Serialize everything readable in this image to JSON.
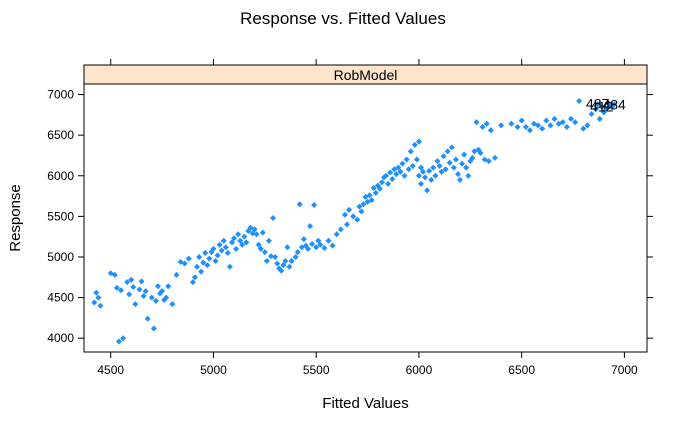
{
  "chart_data": {
    "type": "scatter",
    "title": "Response vs. Fitted Values",
    "xlabel": "Fitted Values",
    "ylabel": "Response",
    "panel_label": "RobModel",
    "xlim": [
      4370,
      7110
    ],
    "ylim": [
      3830,
      7130
    ],
    "x_ticks": [
      4500,
      5000,
      5500,
      6000,
      6500,
      7000
    ],
    "y_ticks": [
      4000,
      4500,
      5000,
      5500,
      6000,
      6500,
      7000
    ],
    "grid": false,
    "colors": {
      "points": "#1E90FF",
      "strip": "#FFE5CC",
      "frame": "#000000"
    },
    "annotations": [
      {
        "text": "484",
        "x": 6950,
        "y": 6880
      },
      {
        "text": "487",
        "x": 6870,
        "y": 6890
      },
      {
        "text": "412",
        "x": 6890,
        "y": 6855
      }
    ],
    "points": [
      [
        4420,
        4440
      ],
      [
        4430,
        4560
      ],
      [
        4440,
        4500
      ],
      [
        4450,
        4400
      ],
      [
        4500,
        4800
      ],
      [
        4520,
        4780
      ],
      [
        4530,
        4620
      ],
      [
        4550,
        4590
      ],
      [
        4540,
        3960
      ],
      [
        4560,
        4000
      ],
      [
        4580,
        4690
      ],
      [
        4600,
        4720
      ],
      [
        4590,
        4540
      ],
      [
        4610,
        4630
      ],
      [
        4620,
        4420
      ],
      [
        4640,
        4600
      ],
      [
        4650,
        4700
      ],
      [
        4660,
        4520
      ],
      [
        4670,
        4580
      ],
      [
        4680,
        4240
      ],
      [
        4700,
        4500
      ],
      [
        4710,
        4120
      ],
      [
        4720,
        4460
      ],
      [
        4730,
        4640
      ],
      [
        4740,
        4550
      ],
      [
        4750,
        4580
      ],
      [
        4760,
        4470
      ],
      [
        4770,
        4500
      ],
      [
        4780,
        4640
      ],
      [
        4800,
        4420
      ],
      [
        4820,
        4780
      ],
      [
        4840,
        4940
      ],
      [
        4860,
        4920
      ],
      [
        4880,
        4980
      ],
      [
        4900,
        4690
      ],
      [
        4910,
        4750
      ],
      [
        4920,
        4880
      ],
      [
        4930,
        5000
      ],
      [
        4940,
        4820
      ],
      [
        4950,
        4930
      ],
      [
        4960,
        5050
      ],
      [
        4970,
        4900
      ],
      [
        4980,
        4980
      ],
      [
        4990,
        5060
      ],
      [
        5000,
        5100
      ],
      [
        5010,
        4950
      ],
      [
        5020,
        5020
      ],
      [
        5030,
        5150
      ],
      [
        5040,
        5080
      ],
      [
        5050,
        5200
      ],
      [
        5060,
        5120
      ],
      [
        5070,
        5050
      ],
      [
        5080,
        4880
      ],
      [
        5090,
        5180
      ],
      [
        5100,
        5230
      ],
      [
        5110,
        5100
      ],
      [
        5120,
        5280
      ],
      [
        5130,
        5200
      ],
      [
        5140,
        5150
      ],
      [
        5150,
        5250
      ],
      [
        5160,
        5180
      ],
      [
        5170,
        5320
      ],
      [
        5180,
        5360
      ],
      [
        5190,
        5290
      ],
      [
        5200,
        5340
      ],
      [
        5210,
        5280
      ],
      [
        5220,
        5150
      ],
      [
        5230,
        5100
      ],
      [
        5240,
        5300
      ],
      [
        5250,
        5060
      ],
      [
        5260,
        4950
      ],
      [
        5270,
        5200
      ],
      [
        5280,
        5010
      ],
      [
        5290,
        5480
      ],
      [
        5300,
        5000
      ],
      [
        5310,
        4920
      ],
      [
        5320,
        4860
      ],
      [
        5330,
        4830
      ],
      [
        5340,
        4900
      ],
      [
        5350,
        4950
      ],
      [
        5360,
        5120
      ],
      [
        5370,
        4880
      ],
      [
        5380,
        4950
      ],
      [
        5400,
        5000
      ],
      [
        5410,
        5060
      ],
      [
        5420,
        5650
      ],
      [
        5430,
        5120
      ],
      [
        5440,
        5220
      ],
      [
        5450,
        5140
      ],
      [
        5460,
        5100
      ],
      [
        5470,
        5380
      ],
      [
        5480,
        5160
      ],
      [
        5490,
        5640
      ],
      [
        5500,
        5120
      ],
      [
        5510,
        5200
      ],
      [
        5520,
        5150
      ],
      [
        5540,
        5110
      ],
      [
        5560,
        5200
      ],
      [
        5580,
        5140
      ],
      [
        5600,
        5280
      ],
      [
        5620,
        5340
      ],
      [
        5640,
        5520
      ],
      [
        5650,
        5400
      ],
      [
        5660,
        5580
      ],
      [
        5680,
        5500
      ],
      [
        5700,
        5460
      ],
      [
        5710,
        5620
      ],
      [
        5720,
        5560
      ],
      [
        5730,
        5650
      ],
      [
        5740,
        5740
      ],
      [
        5750,
        5680
      ],
      [
        5760,
        5760
      ],
      [
        5770,
        5700
      ],
      [
        5780,
        5850
      ],
      [
        5790,
        5790
      ],
      [
        5800,
        5880
      ],
      [
        5810,
        5840
      ],
      [
        5820,
        5920
      ],
      [
        5830,
        5980
      ],
      [
        5840,
        6000
      ],
      [
        5850,
        5900
      ],
      [
        5860,
        6040
      ],
      [
        5870,
        5960
      ],
      [
        5880,
        6080
      ],
      [
        5890,
        6020
      ],
      [
        5900,
        6100
      ],
      [
        5910,
        6050
      ],
      [
        5920,
        6150
      ],
      [
        5930,
        6000
      ],
      [
        5940,
        6200
      ],
      [
        5950,
        6080
      ],
      [
        5960,
        6300
      ],
      [
        5970,
        6120
      ],
      [
        5980,
        6380
      ],
      [
        5990,
        6200
      ],
      [
        6000,
        6420
      ],
      [
        6000,
        6000
      ],
      [
        6010,
        6100
      ],
      [
        6010,
        5900
      ],
      [
        6020,
        6050
      ],
      [
        6030,
        5980
      ],
      [
        6040,
        5820
      ],
      [
        6050,
        6060
      ],
      [
        6060,
        5950
      ],
      [
        6070,
        6100
      ],
      [
        6080,
        6000
      ],
      [
        6090,
        6180
      ],
      [
        6100,
        6120
      ],
      [
        6110,
        6050
      ],
      [
        6120,
        6240
      ],
      [
        6130,
        6080
      ],
      [
        6140,
        6300
      ],
      [
        6150,
        6160
      ],
      [
        6160,
        6350
      ],
      [
        6170,
        6100
      ],
      [
        6180,
        6200
      ],
      [
        6190,
        6020
      ],
      [
        6200,
        5950
      ],
      [
        6210,
        6150
      ],
      [
        6220,
        6260
      ],
      [
        6230,
        6100
      ],
      [
        6240,
        6000
      ],
      [
        6250,
        6180
      ],
      [
        6260,
        6220
      ],
      [
        6270,
        6300
      ],
      [
        6280,
        6660
      ],
      [
        6290,
        6320
      ],
      [
        6300,
        6280
      ],
      [
        6310,
        6600
      ],
      [
        6320,
        6200
      ],
      [
        6330,
        6640
      ],
      [
        6340,
        6180
      ],
      [
        6350,
        6560
      ],
      [
        6370,
        6220
      ],
      [
        6400,
        6620
      ],
      [
        6450,
        6640
      ],
      [
        6480,
        6600
      ],
      [
        6500,
        6680
      ],
      [
        6520,
        6600
      ],
      [
        6540,
        6560
      ],
      [
        6560,
        6640
      ],
      [
        6580,
        6620
      ],
      [
        6600,
        6580
      ],
      [
        6620,
        6680
      ],
      [
        6640,
        6620
      ],
      [
        6660,
        6700
      ],
      [
        6680,
        6640
      ],
      [
        6700,
        6660
      ],
      [
        6720,
        6600
      ],
      [
        6740,
        6700
      ],
      [
        6760,
        6660
      ],
      [
        6780,
        6920
      ],
      [
        6800,
        6580
      ],
      [
        6820,
        6620
      ],
      [
        6840,
        6760
      ],
      [
        6860,
        6820
      ],
      [
        6870,
        6880
      ],
      [
        6880,
        6700
      ],
      [
        6890,
        6850
      ],
      [
        6900,
        6780
      ],
      [
        6910,
        6820
      ],
      [
        6920,
        6900
      ],
      [
        6930,
        6860
      ],
      [
        6940,
        6840
      ],
      [
        6950,
        6880
      ]
    ]
  }
}
